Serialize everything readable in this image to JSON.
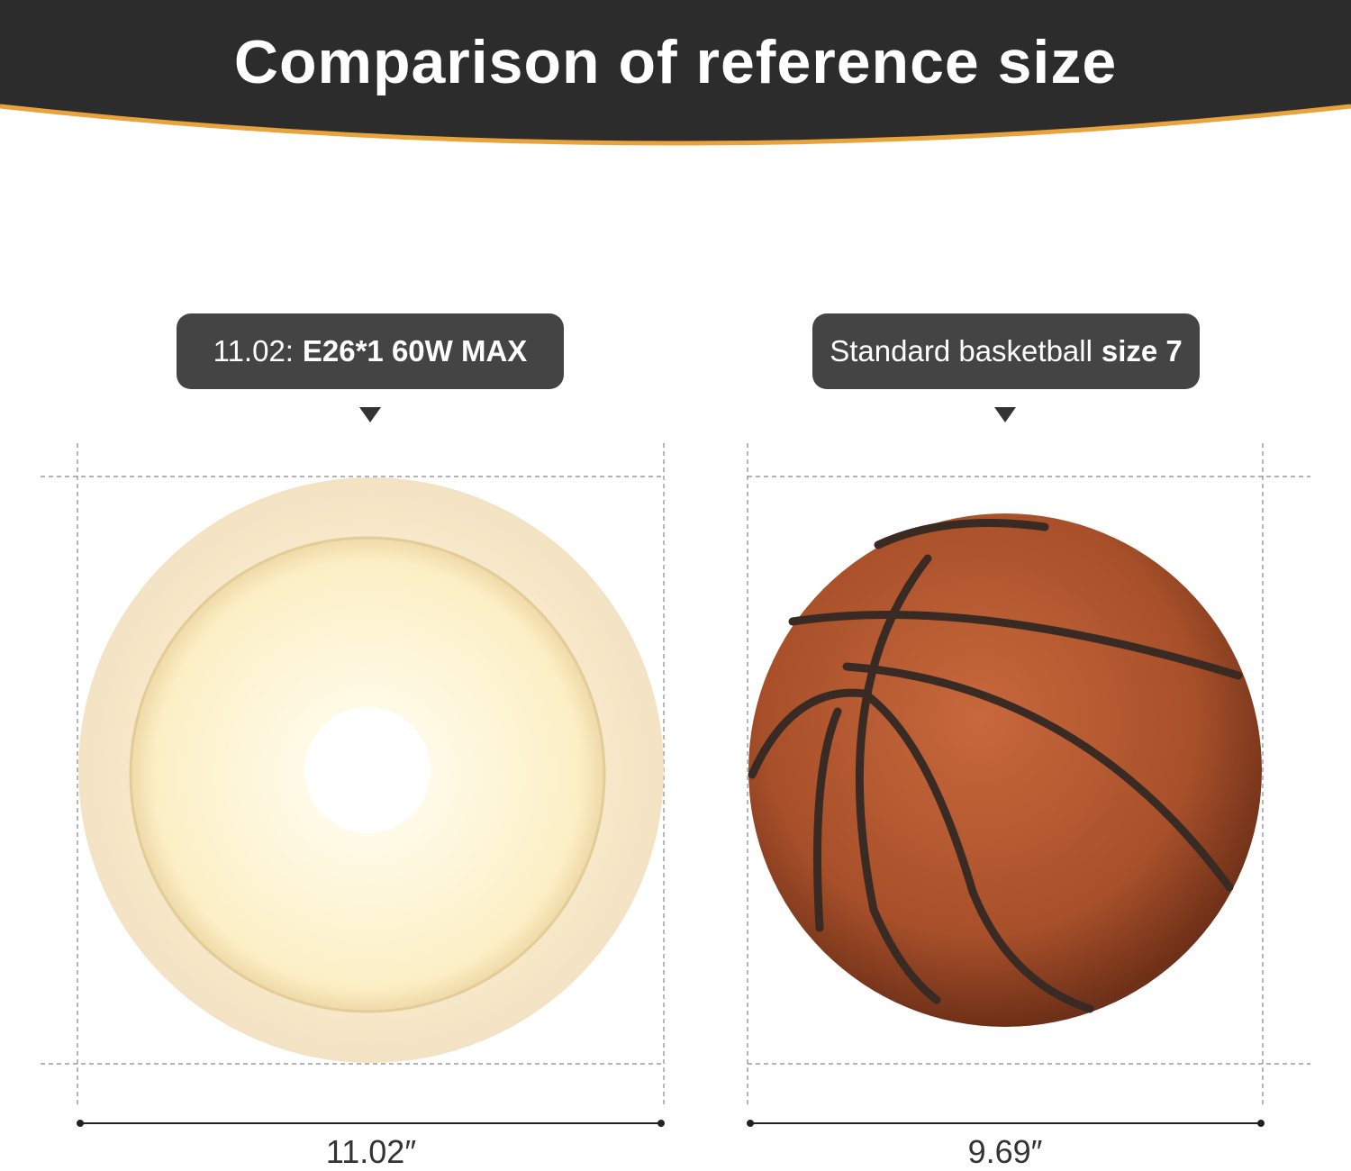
{
  "header": {
    "title": "Comparison of reference size"
  },
  "items": [
    {
      "label_prefix": "11.02:",
      "label_bold": "E26*1 60W MAX",
      "dimension": "11.02″"
    },
    {
      "label_prefix": "Standard basketball",
      "label_bold": "size 7",
      "dimension": "9.69″"
    }
  ]
}
